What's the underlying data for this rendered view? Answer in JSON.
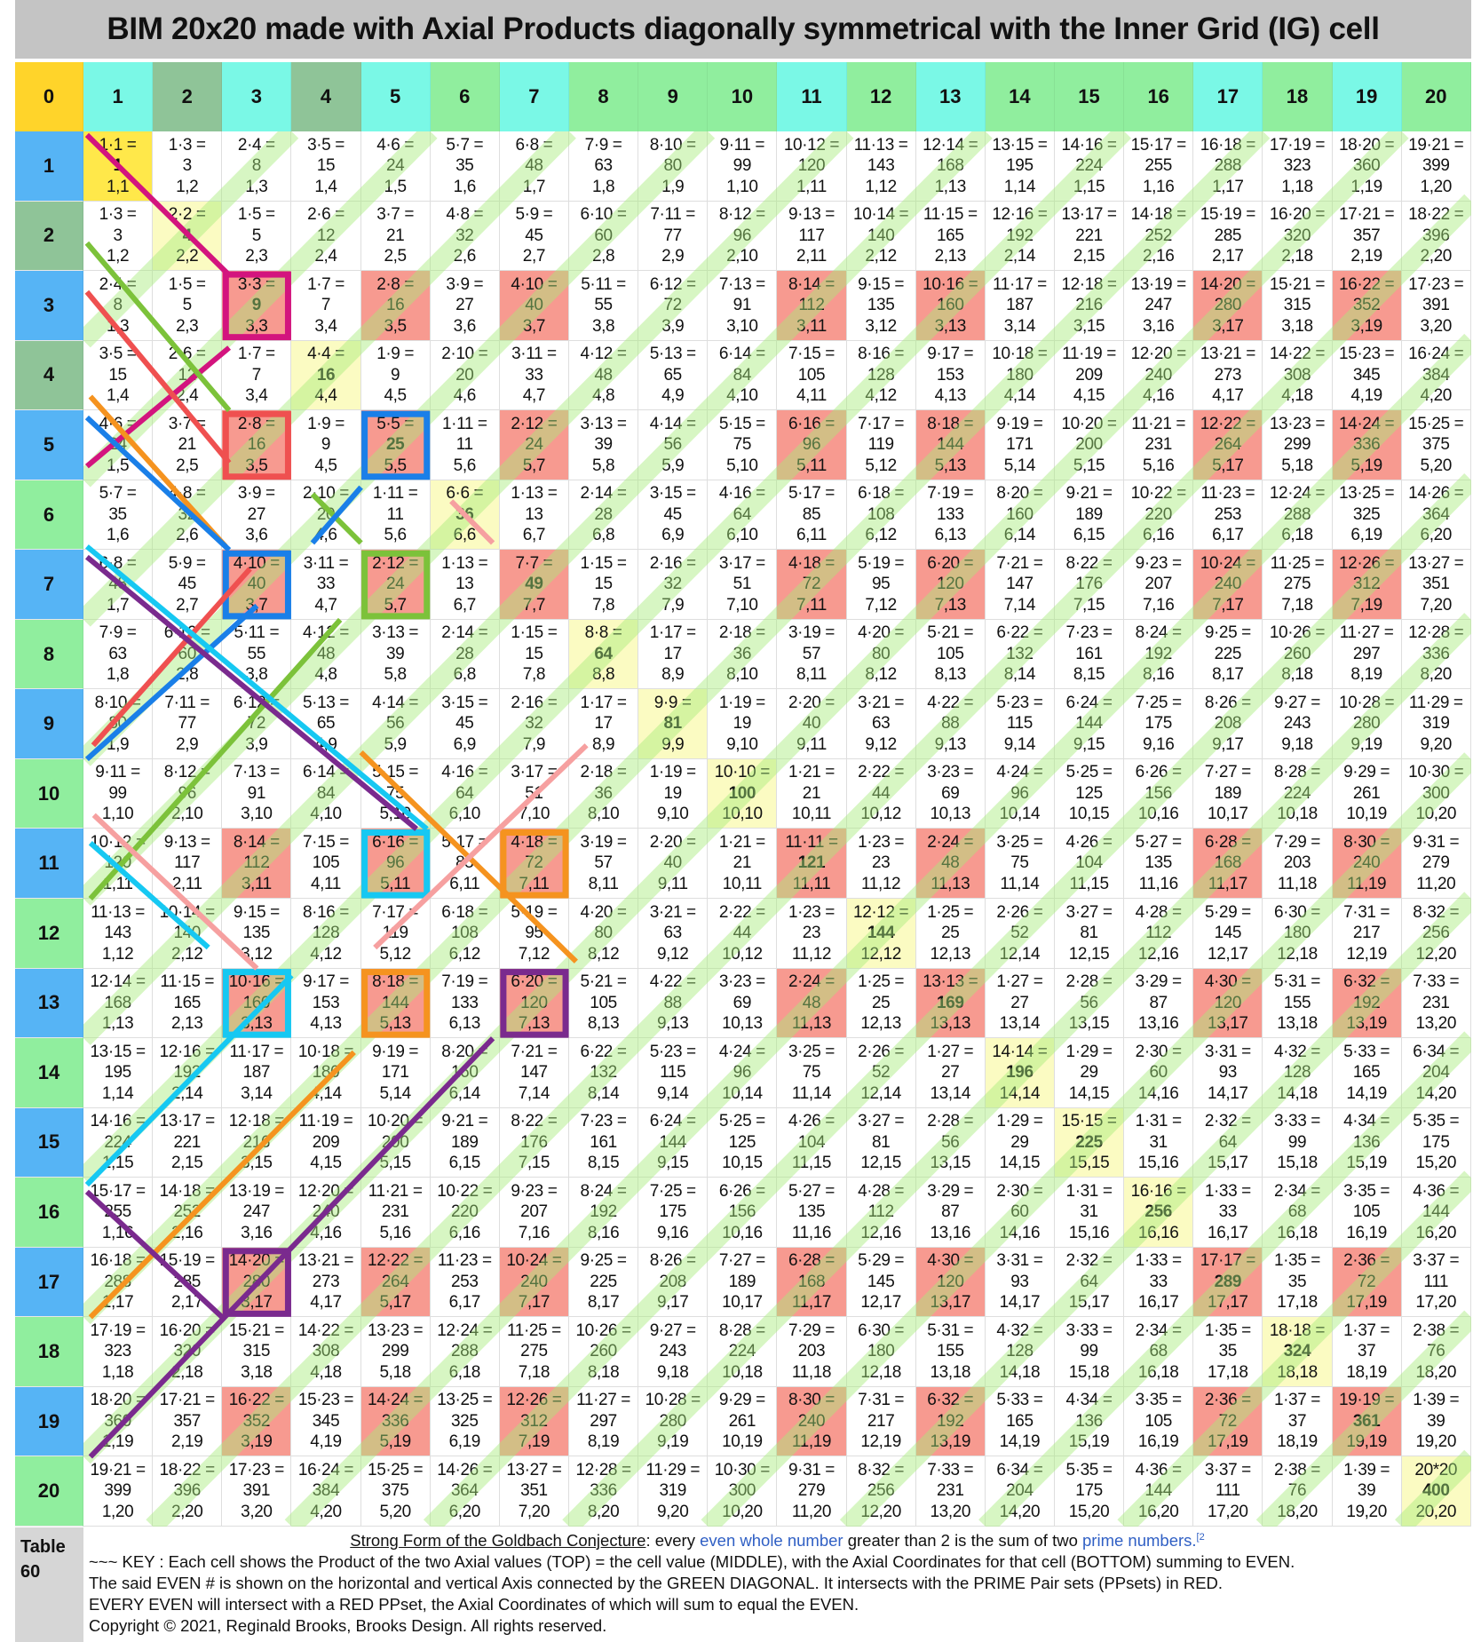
{
  "title": "BIM 20x20 made with Axial Products diagonally symmetrical with the Inner Grid (IG) cell",
  "corner_label": "0",
  "axis_labels": [
    "1",
    "2",
    "3",
    "4",
    "5",
    "6",
    "7",
    "8",
    "9",
    "10",
    "11",
    "12",
    "13",
    "14",
    "15",
    "16",
    "17",
    "18",
    "19",
    "20"
  ],
  "odd_primes": [
    3,
    5,
    7,
    11,
    13,
    17,
    19
  ],
  "colors": {
    "corner": "#ffd42a",
    "col_prime": "#7af8e6",
    "col_low_even": "#8fc498",
    "col_other": "#90ee9e",
    "row_odd": "#56b4f5",
    "row_low_even": "#8fc498",
    "row_other": "#90ee9e",
    "prime_pair_cell": "#f79a90",
    "diagonal_cell": "#fbfbc2",
    "first_cell": "#ffe84a",
    "green_diagonal": "#a6ea7a",
    "magenta": "#d3147e",
    "red": "#ef5050",
    "green": "#7cc23a",
    "orange": "#f5931f",
    "blue": "#1a7fe8",
    "cyan": "#16c8f2",
    "purple": "#7a2a8e",
    "pink": "#f6a0a0"
  },
  "highlight_boxes": [
    {
      "row": 3,
      "col": 3,
      "color": "magenta"
    },
    {
      "row": 5,
      "col": 3,
      "color": "red"
    },
    {
      "row": 5,
      "col": 5,
      "color": "blue"
    },
    {
      "row": 7,
      "col": 3,
      "color": "blue"
    },
    {
      "row": 7,
      "col": 5,
      "color": "green"
    },
    {
      "row": 11,
      "col": 5,
      "color": "cyan"
    },
    {
      "row": 11,
      "col": 7,
      "color": "orange"
    },
    {
      "row": 13,
      "col": 3,
      "color": "cyan"
    },
    {
      "row": 13,
      "col": 5,
      "color": "orange"
    },
    {
      "row": 13,
      "col": 7,
      "color": "purple"
    },
    {
      "row": 17,
      "col": 3,
      "color": "purple"
    }
  ],
  "grid": {
    "upper": [
      [
        [
          "1·1 =",
          "1",
          "1,1"
        ],
        [
          "1·3 =",
          "3",
          "1,2"
        ],
        [
          "2·4 =",
          "8",
          "1,3"
        ],
        [
          "3·5 =",
          "15",
          "1,4"
        ],
        [
          "4·6 =",
          "24",
          "1,5"
        ],
        [
          "5·7 =",
          "35",
          "1,6"
        ],
        [
          "6·8 =",
          "48",
          "1,7"
        ],
        [
          "7·9 =",
          "63",
          "1,8"
        ],
        [
          "8·10 =",
          "80",
          "1,9"
        ],
        [
          "9·11 =",
          "99",
          "1,10"
        ],
        [
          "10·12 =",
          "120",
          "1,11"
        ],
        [
          "11·13 =",
          "143",
          "1,12"
        ],
        [
          "12·14 =",
          "168",
          "1,13"
        ],
        [
          "13·15 =",
          "195",
          "1,14"
        ],
        [
          "14·16 =",
          "224",
          "1,15"
        ],
        [
          "15·17 =",
          "255",
          "1,16"
        ],
        [
          "16·18 =",
          "288",
          "1,17"
        ],
        [
          "17·19 =",
          "323",
          "1,18"
        ],
        [
          "18·20 =",
          "360",
          "1,19"
        ],
        [
          "19·21 =",
          "399",
          "1,20"
        ]
      ],
      [
        [
          "2·2 =",
          "4",
          "2,2"
        ],
        [
          "1·5 =",
          "5",
          "2,3"
        ],
        [
          "2·6 =",
          "12",
          "2,4"
        ],
        [
          "3·7 =",
          "21",
          "2,5"
        ],
        [
          "4·8 =",
          "32",
          "2,6"
        ],
        [
          "5·9 =",
          "45",
          "2,7"
        ],
        [
          "6·10 =",
          "60",
          "2,8"
        ],
        [
          "7·11 =",
          "77",
          "2,9"
        ],
        [
          "8·12 =",
          "96",
          "2,10"
        ],
        [
          "9·13 =",
          "117",
          "2,11"
        ],
        [
          "10·14 =",
          "140",
          "2,12"
        ],
        [
          "11·15 =",
          "165",
          "2,13"
        ],
        [
          "12·16 =",
          "192",
          "2,14"
        ],
        [
          "13·17 =",
          "221",
          "2,15"
        ],
        [
          "14·18 =",
          "252",
          "2,16"
        ],
        [
          "15·19 =",
          "285",
          "2,17"
        ],
        [
          "16·20 =",
          "320",
          "2,18"
        ],
        [
          "17·21 =",
          "357",
          "2,19"
        ],
        [
          "18·22 =",
          "396",
          "2,20"
        ]
      ],
      [
        [
          "3·3 =",
          "9",
          "3,3"
        ],
        [
          "1·7 =",
          "7",
          "3,4"
        ],
        [
          "2·8 =",
          "16",
          "3,5"
        ],
        [
          "3·9 =",
          "27",
          "3,6"
        ],
        [
          "4·10 =",
          "40",
          "3,7"
        ],
        [
          "5·11 =",
          "55",
          "3,8"
        ],
        [
          "6·12 =",
          "72",
          "3,9"
        ],
        [
          "7·13 =",
          "91",
          "3,10"
        ],
        [
          "8·14 =",
          "112",
          "3,11"
        ],
        [
          "9·15 =",
          "135",
          "3,12"
        ],
        [
          "10·16 =",
          "160",
          "3,13"
        ],
        [
          "11·17 =",
          "187",
          "3,14"
        ],
        [
          "12·18 =",
          "216",
          "3,15"
        ],
        [
          "13·19 =",
          "247",
          "3,16"
        ],
        [
          "14·20 =",
          "280",
          "3,17"
        ],
        [
          "15·21 =",
          "315",
          "3,18"
        ],
        [
          "16·22 =",
          "352",
          "3,19"
        ],
        [
          "17·23 =",
          "391",
          "3,20"
        ]
      ],
      [
        [
          "4·4 =",
          "16",
          "4,4"
        ],
        [
          "1·9 =",
          "9",
          "4,5"
        ],
        [
          "2·10 =",
          "20",
          "4,6"
        ],
        [
          "3·11 =",
          "33",
          "4,7"
        ],
        [
          "4·12 =",
          "48",
          "4,8"
        ],
        [
          "5·13 =",
          "65",
          "4,9"
        ],
        [
          "6·14 =",
          "84",
          "4,10"
        ],
        [
          "7·15 =",
          "105",
          "4,11"
        ],
        [
          "8·16 =",
          "128",
          "4,12"
        ],
        [
          "9·17 =",
          "153",
          "4,13"
        ],
        [
          "10·18 =",
          "180",
          "4,14"
        ],
        [
          "11·19 =",
          "209",
          "4,15"
        ],
        [
          "12·20 =",
          "240",
          "4,16"
        ],
        [
          "13·21 =",
          "273",
          "4,17"
        ],
        [
          "14·22 =",
          "308",
          "4,18"
        ],
        [
          "15·23 =",
          "345",
          "4,19"
        ],
        [
          "16·24 =",
          "384",
          "4,20"
        ]
      ],
      [
        [
          "5·5 =",
          "25",
          "5,5"
        ],
        [
          "1·11 =",
          "11",
          "5,6"
        ],
        [
          "2·12 =",
          "24",
          "5,7"
        ],
        [
          "3·13 =",
          "39",
          "5,8"
        ],
        [
          "4·14 =",
          "56",
          "5,9"
        ],
        [
          "5·15 =",
          "75",
          "5,10"
        ],
        [
          "6·16 =",
          "96",
          "5,11"
        ],
        [
          "7·17 =",
          "119",
          "5,12"
        ],
        [
          "8·18 =",
          "144",
          "5,13"
        ],
        [
          "9·19 =",
          "171",
          "5,14"
        ],
        [
          "10·20 =",
          "200",
          "5,15"
        ],
        [
          "11·21 =",
          "231",
          "5,16"
        ],
        [
          "12·22 =",
          "264",
          "5,17"
        ],
        [
          "13·23 =",
          "299",
          "5,18"
        ],
        [
          "14·24 =",
          "336",
          "5,19"
        ],
        [
          "15·25 =",
          "375",
          "5,20"
        ]
      ],
      [
        [
          "6·6 =",
          "36",
          "6,6"
        ],
        [
          "1·13 =",
          "13",
          "6,7"
        ],
        [
          "2·14 =",
          "28",
          "6,8"
        ],
        [
          "3·15 =",
          "45",
          "6,9"
        ],
        [
          "4·16 =",
          "64",
          "6,10"
        ],
        [
          "5·17 =",
          "85",
          "6,11"
        ],
        [
          "6·18 =",
          "108",
          "6,12"
        ],
        [
          "7·19 =",
          "133",
          "6,13"
        ],
        [
          "8·20 =",
          "160",
          "6,14"
        ],
        [
          "9·21 =",
          "189",
          "6,15"
        ],
        [
          "10·22 =",
          "220",
          "6,16"
        ],
        [
          "11·23 =",
          "253",
          "6,17"
        ],
        [
          "12·24 =",
          "288",
          "6,18"
        ],
        [
          "13·25 =",
          "325",
          "6,19"
        ],
        [
          "14·26 =",
          "364",
          "6,20"
        ]
      ],
      [
        [
          "7·7 =",
          "49",
          "7,7"
        ],
        [
          "1·15 =",
          "15",
          "7,8"
        ],
        [
          "2·16 =",
          "32",
          "7,9"
        ],
        [
          "3·17 =",
          "51",
          "7,10"
        ],
        [
          "4·18 =",
          "72",
          "7,11"
        ],
        [
          "5·19 =",
          "95",
          "7,12"
        ],
        [
          "6·20 =",
          "120",
          "7,13"
        ],
        [
          "7·21 =",
          "147",
          "7,14"
        ],
        [
          "8·22 =",
          "176",
          "7,15"
        ],
        [
          "9·23 =",
          "207",
          "7,16"
        ],
        [
          "10·24 =",
          "240",
          "7,17"
        ],
        [
          "11·25 =",
          "275",
          "7,18"
        ],
        [
          "12·26 =",
          "312",
          "7,19"
        ],
        [
          "13·27 =",
          "351",
          "7,20"
        ]
      ],
      [
        [
          "8·8 =",
          "64",
          "8,8"
        ],
        [
          "1·17 =",
          "17",
          "8,9"
        ],
        [
          "2·18 =",
          "36",
          "8,10"
        ],
        [
          "3·19 =",
          "57",
          "8,11"
        ],
        [
          "4·20 =",
          "80",
          "8,12"
        ],
        [
          "5·21 =",
          "105",
          "8,13"
        ],
        [
          "6·22 =",
          "132",
          "8,14"
        ],
        [
          "7·23 =",
          "161",
          "8,15"
        ],
        [
          "8·24 =",
          "192",
          "8,16"
        ],
        [
          "9·25 =",
          "225",
          "8,17"
        ],
        [
          "10·26 =",
          "260",
          "8,18"
        ],
        [
          "11·27 =",
          "297",
          "8,19"
        ],
        [
          "12·28 =",
          "336",
          "8,20"
        ]
      ],
      [
        [
          "9·9 =",
          "81",
          "9,9"
        ],
        [
          "1·19 =",
          "19",
          "9,10"
        ],
        [
          "2·20 =",
          "40",
          "9,11"
        ],
        [
          "3·21 =",
          "63",
          "9,12"
        ],
        [
          "4·22 =",
          "88",
          "9,13"
        ],
        [
          "5·23 =",
          "115",
          "9,14"
        ],
        [
          "6·24 =",
          "144",
          "9,15"
        ],
        [
          "7·25 =",
          "175",
          "9,16"
        ],
        [
          "8·26 =",
          "208",
          "9,17"
        ],
        [
          "9·27 =",
          "243",
          "9,18"
        ],
        [
          "10·28 =",
          "280",
          "9,19"
        ],
        [
          "11·29 =",
          "319",
          "9,20"
        ]
      ],
      [
        [
          "10·10 =",
          "100",
          "10,10"
        ],
        [
          "1·21 =",
          "21",
          "10,11"
        ],
        [
          "2·22 =",
          "44",
          "10,12"
        ],
        [
          "3·23 =",
          "69",
          "10,13"
        ],
        [
          "4·24 =",
          "96",
          "10,14"
        ],
        [
          "5·25 =",
          "125",
          "10,15"
        ],
        [
          "6·26 =",
          "156",
          "10,16"
        ],
        [
          "7·27 =",
          "189",
          "10,17"
        ],
        [
          "8·28 =",
          "224",
          "10,18"
        ],
        [
          "9·29 =",
          "261",
          "10,19"
        ],
        [
          "10·30 =",
          "300",
          "10,20"
        ]
      ],
      [
        [
          "11·11 =",
          "121",
          "11,11"
        ],
        [
          "1·23 =",
          "23",
          "11,12"
        ],
        [
          "2·24 =",
          "48",
          "11,13"
        ],
        [
          "3·25 =",
          "75",
          "11,14"
        ],
        [
          "4·26 =",
          "104",
          "11,15"
        ],
        [
          "5·27 =",
          "135",
          "11,16"
        ],
        [
          "6·28 =",
          "168",
          "11,17"
        ],
        [
          "7·29 =",
          "203",
          "11,18"
        ],
        [
          "8·30 =",
          "240",
          "11,19"
        ],
        [
          "9·31 =",
          "279",
          "11,20"
        ]
      ],
      [
        [
          "12·12 =",
          "144",
          "12,12"
        ],
        [
          "1·25 =",
          "25",
          "12,13"
        ],
        [
          "2·26 =",
          "52",
          "12,14"
        ],
        [
          "3·27 =",
          "81",
          "12,15"
        ],
        [
          "4·28 =",
          "112",
          "12,16"
        ],
        [
          "5·29 =",
          "145",
          "12,17"
        ],
        [
          "6·30 =",
          "180",
          "12,18"
        ],
        [
          "7·31 =",
          "217",
          "12,19"
        ],
        [
          "8·32 =",
          "256",
          "12,20"
        ]
      ],
      [
        [
          "13·13 =",
          "169",
          "13,13"
        ],
        [
          "1·27 =",
          "27",
          "13,14"
        ],
        [
          "2·28 =",
          "56",
          "13,15"
        ],
        [
          "3·29 =",
          "87",
          "13,16"
        ],
        [
          "4·30 =",
          "120",
          "13,17"
        ],
        [
          "5·31 =",
          "155",
          "13,18"
        ],
        [
          "6·32 =",
          "192",
          "13,19"
        ],
        [
          "7·33 =",
          "231",
          "13,20"
        ]
      ],
      [
        [
          "14·14 =",
          "196",
          "14,14"
        ],
        [
          "1·29 =",
          "29",
          "14,15"
        ],
        [
          "2·30 =",
          "60",
          "14,16"
        ],
        [
          "3·31 =",
          "93",
          "14,17"
        ],
        [
          "4·32 =",
          "128",
          "14,18"
        ],
        [
          "5·33 =",
          "165",
          "14,19"
        ],
        [
          "6·34 =",
          "204",
          "14,20"
        ]
      ],
      [
        [
          "15·15 =",
          "225",
          "15,15"
        ],
        [
          "1·31 =",
          "31",
          "15,16"
        ],
        [
          "2·32 =",
          "64",
          "15,17"
        ],
        [
          "3·33 =",
          "99",
          "15,18"
        ],
        [
          "4·34 =",
          "136",
          "15,19"
        ],
        [
          "5·35 =",
          "175",
          "15,20"
        ]
      ],
      [
        [
          "16·16 =",
          "256",
          "16,16"
        ],
        [
          "1·33 =",
          "33",
          "16,17"
        ],
        [
          "2·34 =",
          "68",
          "16,18"
        ],
        [
          "3·35 =",
          "105",
          "16,19"
        ],
        [
          "4·36 =",
          "144",
          "16,20"
        ]
      ],
      [
        [
          "17·17 =",
          "289",
          "17,17"
        ],
        [
          "1·35 =",
          "35",
          "17,18"
        ],
        [
          "2·36 =",
          "72",
          "17,19"
        ],
        [
          "3·37 =",
          "111",
          "17,20"
        ]
      ],
      [
        [
          "18·18 =",
          "324",
          "18,18"
        ],
        [
          "1·37 =",
          "37",
          "18,19"
        ],
        [
          "2·38 =",
          "76",
          "18,20"
        ]
      ],
      [
        [
          "19·19 =",
          "361",
          "19,19"
        ],
        [
          "1·39 =",
          "39",
          "19,20"
        ]
      ],
      [
        [
          "20*20",
          "400",
          "20,20"
        ]
      ]
    ]
  },
  "footer": {
    "table_label": "Table",
    "table_number": "60",
    "heading_link": "Strong Form of the Goldbach Conjecture",
    "heading_text1": ": every ",
    "heading_link2": "even whole number",
    "heading_text2": " greater than 2 is the sum of two ",
    "heading_link3": "prime numbers.",
    "heading_ref": "[2",
    "key_line": "~~~ KEY : Each  cell shows the Product of the two Axial values (TOP) = the cell value (MIDDLE), with the Axial Coordinates for that cell (BOTTOM) summing to EVEN.",
    "line2": "The said EVEN # is shown on the horizontal and vertical Axis connected by the GREEN DIAGONAL. It intersects with the PRIME Pair sets (PPsets) in RED.",
    "line3": "EVERY EVEN will intersect with a RED PPset, the Axial Coordinates of which will sum to equal the EVEN.",
    "copyright": "Copyright © 2021, Reginald Brooks, Brooks Design. All rights reserved."
  }
}
